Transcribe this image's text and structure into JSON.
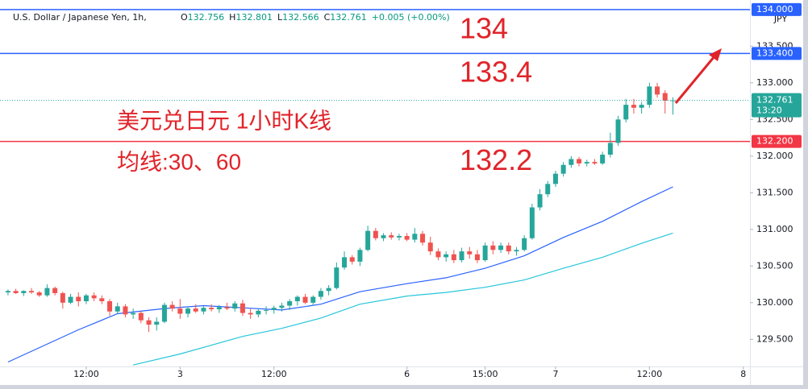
{
  "chart_data": {
    "type": "candlestick",
    "symbol": "U.S. Dollar / Japanese Yen, 1h,",
    "ohlc_labels": [
      "O",
      "H",
      "L",
      "C"
    ],
    "change": "+0.005 (+0.00%)",
    "currency": "JPY",
    "countdown": "13:20",
    "annotations": [
      "美元兑日元 1小时K线",
      "均线:30、60"
    ],
    "up_color": "#26a69a",
    "down_color": "#ef5350",
    "xlim": [
      -0.2,
      94.85
    ],
    "xticks": [
      {
        "value": 10,
        "label": "12:00"
      },
      {
        "value": 22,
        "label": "3"
      },
      {
        "value": 34,
        "label": "12:00"
      },
      {
        "value": 51,
        "label": "6"
      },
      {
        "value": 61,
        "label": "15:00"
      },
      {
        "value": 70,
        "label": "7"
      },
      {
        "value": 82,
        "label": "12:00"
      },
      {
        "value": 94,
        "label": "8"
      }
    ],
    "ylim": [
      129.13,
      134.13
    ],
    "yticks": [
      {
        "value": 129.5,
        "label": "129.500"
      },
      {
        "value": 130,
        "label": "130.000"
      },
      {
        "value": 130.5,
        "label": "130.500"
      },
      {
        "value": 131,
        "label": "131.000"
      },
      {
        "value": 131.5,
        "label": "131.500"
      },
      {
        "value": 132,
        "label": "132.000"
      },
      {
        "value": 132.5,
        "label": "132.500"
      },
      {
        "value": 133,
        "label": "133.000"
      },
      {
        "value": 133.5,
        "label": "133.500"
      }
    ],
    "levels": [
      {
        "value": 134,
        "label": "134.000",
        "color": "#2962ff"
      },
      {
        "value": 133.4,
        "label": "133.400",
        "color": "#2962ff"
      },
      {
        "value": 132.2,
        "label": "132.200",
        "color": "#f23645"
      }
    ],
    "ohlc": [
      [
        130.14,
        130.18,
        130.1,
        130.16
      ],
      [
        130.16,
        130.19,
        130.12,
        130.13
      ],
      [
        130.13,
        130.17,
        130.09,
        130.16
      ],
      [
        130.16,
        130.2,
        130.12,
        130.14
      ],
      [
        130.14,
        130.16,
        130.08,
        130.1
      ],
      [
        130.1,
        130.25,
        130.08,
        130.2
      ],
      [
        130.2,
        130.22,
        130.1,
        130.13
      ],
      [
        130.13,
        130.15,
        129.92,
        130.0
      ],
      [
        130.0,
        130.12,
        129.98,
        130.08
      ],
      [
        130.08,
        130.14,
        129.95,
        130.02
      ],
      [
        130.02,
        130.12,
        129.98,
        130.1
      ],
      [
        130.1,
        130.14,
        130.02,
        130.06
      ],
      [
        130.06,
        130.1,
        129.98,
        130.02
      ],
      [
        130.02,
        130.05,
        129.82,
        129.88
      ],
      [
        129.88,
        130.0,
        129.85,
        129.95
      ],
      [
        129.95,
        129.98,
        129.8,
        129.84
      ],
      [
        129.84,
        129.92,
        129.78,
        129.86
      ],
      [
        129.86,
        129.88,
        129.72,
        129.76
      ],
      [
        129.76,
        129.8,
        129.6,
        129.7
      ],
      [
        129.7,
        129.8,
        129.62,
        129.74
      ],
      [
        129.74,
        130.0,
        129.72,
        129.97
      ],
      [
        129.97,
        130.02,
        129.88,
        129.92
      ],
      [
        129.92,
        130.05,
        129.78,
        129.85
      ],
      [
        129.85,
        129.95,
        129.8,
        129.92
      ],
      [
        129.92,
        129.98,
        129.86,
        129.88
      ],
      [
        129.88,
        129.95,
        129.84,
        129.93
      ],
      [
        129.93,
        129.98,
        129.88,
        129.91
      ],
      [
        129.91,
        129.97,
        129.86,
        129.94
      ],
      [
        129.94,
        130.0,
        129.9,
        129.92
      ],
      [
        129.92,
        130.02,
        129.88,
        129.99
      ],
      [
        129.99,
        130.04,
        129.82,
        129.86
      ],
      [
        129.86,
        129.92,
        129.78,
        129.84
      ],
      [
        129.84,
        129.92,
        129.8,
        129.89
      ],
      [
        129.89,
        129.95,
        129.84,
        129.9
      ],
      [
        129.9,
        129.96,
        129.85,
        129.93
      ],
      [
        129.93,
        130.0,
        129.88,
        129.96
      ],
      [
        129.96,
        130.05,
        129.9,
        130.02
      ],
      [
        130.02,
        130.1,
        129.96,
        130.08
      ],
      [
        130.08,
        130.12,
        129.98,
        130.0
      ],
      [
        130.0,
        130.1,
        129.96,
        130.08
      ],
      [
        130.08,
        130.2,
        130.04,
        130.16
      ],
      [
        130.16,
        130.24,
        130.1,
        130.2
      ],
      [
        130.2,
        130.55,
        130.18,
        130.48
      ],
      [
        130.48,
        130.7,
        130.45,
        130.62
      ],
      [
        130.62,
        130.65,
        130.52,
        130.56
      ],
      [
        130.56,
        130.75,
        130.5,
        130.72
      ],
      [
        130.72,
        131.05,
        130.7,
        130.98
      ],
      [
        130.98,
        131.02,
        130.85,
        130.88
      ],
      [
        130.88,
        130.95,
        130.84,
        130.92
      ],
      [
        130.92,
        130.96,
        130.86,
        130.89
      ],
      [
        130.89,
        130.94,
        130.85,
        130.91
      ],
      [
        130.91,
        130.95,
        130.84,
        130.86
      ],
      [
        130.86,
        131.02,
        130.82,
        130.94
      ],
      [
        130.94,
        130.98,
        130.78,
        130.82
      ],
      [
        130.82,
        130.9,
        130.65,
        130.7
      ],
      [
        130.7,
        130.74,
        130.58,
        130.62
      ],
      [
        130.62,
        130.7,
        130.56,
        130.66
      ],
      [
        130.66,
        130.72,
        130.54,
        130.58
      ],
      [
        130.58,
        130.75,
        130.55,
        130.7
      ],
      [
        130.7,
        130.76,
        130.6,
        130.66
      ],
      [
        130.66,
        130.72,
        130.54,
        130.58
      ],
      [
        130.58,
        130.82,
        130.56,
        130.78
      ],
      [
        130.78,
        130.84,
        130.66,
        130.72
      ],
      [
        130.72,
        130.82,
        130.68,
        130.78
      ],
      [
        130.78,
        130.82,
        130.66,
        130.7
      ],
      [
        130.7,
        130.76,
        130.64,
        130.72
      ],
      [
        130.72,
        130.92,
        130.7,
        130.88
      ],
      [
        130.88,
        131.35,
        130.86,
        131.3
      ],
      [
        131.3,
        131.55,
        131.26,
        131.48
      ],
      [
        131.48,
        131.66,
        131.44,
        131.62
      ],
      [
        131.62,
        131.8,
        131.58,
        131.76
      ],
      [
        131.76,
        131.92,
        131.72,
        131.88
      ],
      [
        131.88,
        132.0,
        131.84,
        131.96
      ],
      [
        131.96,
        131.99,
        131.86,
        131.9
      ],
      [
        131.9,
        131.95,
        131.86,
        131.92
      ],
      [
        131.92,
        131.96,
        131.88,
        131.9
      ],
      [
        131.9,
        132.06,
        131.88,
        132.02
      ],
      [
        132.02,
        132.32,
        131.98,
        132.18
      ],
      [
        132.18,
        132.55,
        132.14,
        132.5
      ],
      [
        132.5,
        132.78,
        132.46,
        132.7
      ],
      [
        132.7,
        132.78,
        132.58,
        132.66
      ],
      [
        132.66,
        132.74,
        132.58,
        132.7
      ],
      [
        132.7,
        133.0,
        132.66,
        132.95
      ],
      [
        132.95,
        133.0,
        132.8,
        132.84
      ],
      [
        132.86,
        132.9,
        132.58,
        132.756
      ],
      [
        132.756,
        132.801,
        132.566,
        132.761
      ]
    ],
    "series": [
      {
        "name": "MA30",
        "color": "#2962ff",
        "x": [
          0,
          9,
          14,
          20,
          25,
          30,
          35,
          40,
          45,
          51,
          56,
          61,
          66,
          71,
          76,
          81,
          85
        ],
        "values": [
          129.19,
          129.63,
          129.85,
          129.92,
          129.96,
          129.93,
          129.9,
          129.98,
          130.15,
          130.26,
          130.34,
          130.47,
          130.64,
          130.89,
          131.11,
          131.38,
          131.58
        ]
      },
      {
        "name": "MA60",
        "color": "#26c6da",
        "x": [
          16,
          22,
          30,
          35,
          40,
          45,
          51,
          56,
          61,
          66,
          71,
          76,
          81,
          85
        ],
        "values": [
          129.15,
          129.3,
          129.54,
          129.65,
          129.79,
          129.98,
          130.09,
          130.14,
          130.21,
          130.31,
          130.47,
          130.62,
          130.81,
          130.95
        ]
      }
    ]
  }
}
